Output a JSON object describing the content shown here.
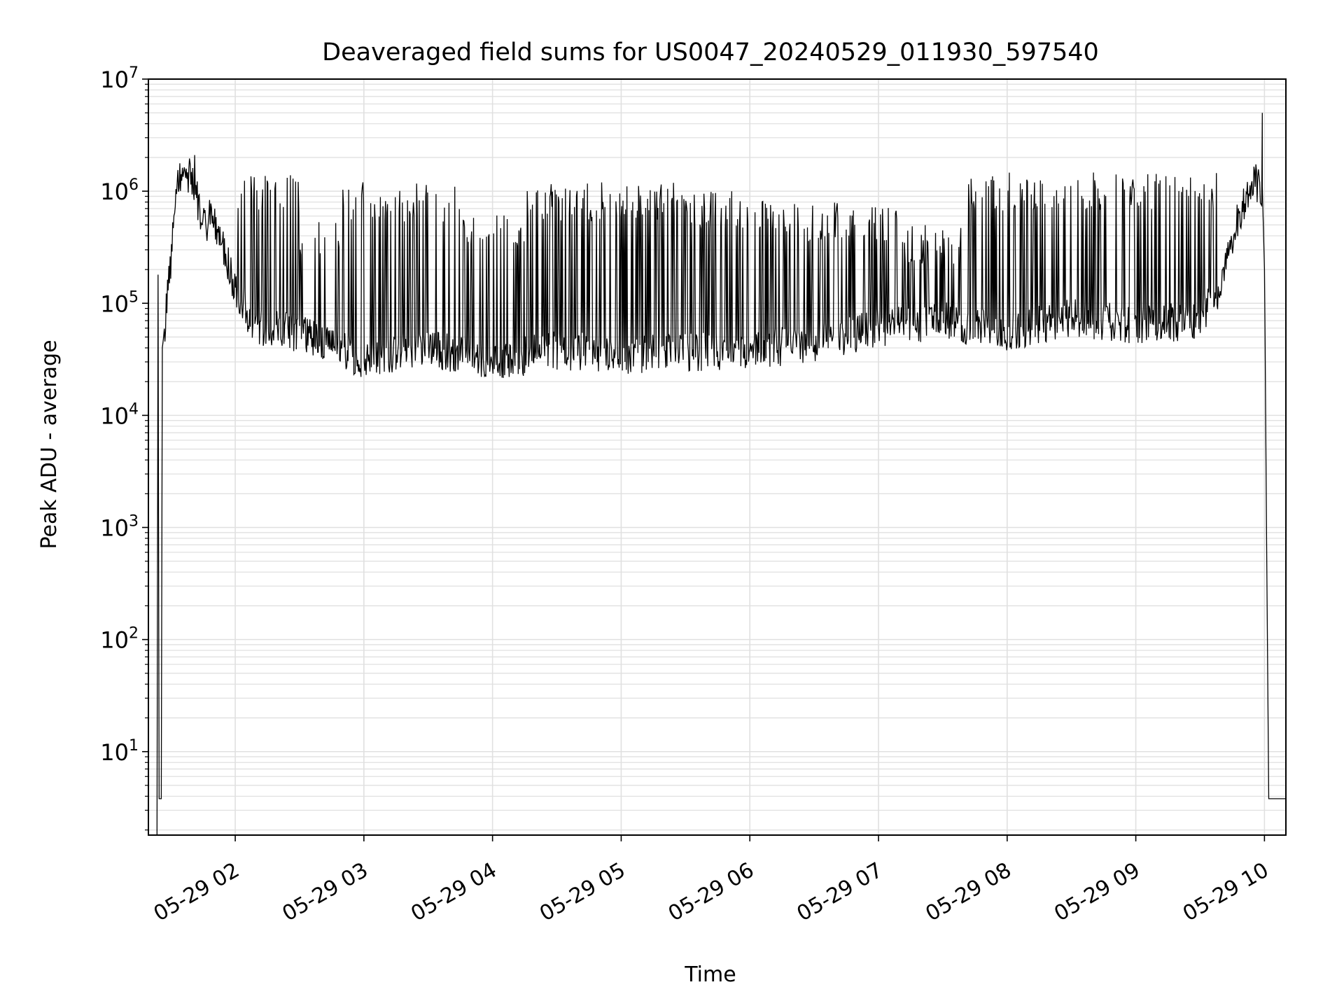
{
  "chart_data": {
    "type": "line",
    "title": "Deaveraged field sums for US0047_20240529_011930_597540",
    "xlabel": "Time",
    "ylabel": "Peak ADU - average",
    "x_scale": "time",
    "y_scale": "log",
    "x_range": [
      "2024-05-29T01:19:30",
      "2024-05-29T10:10:00"
    ],
    "ylim": [
      1.8,
      10000000
    ],
    "x_ticks": [
      {
        "time": "2024-05-29T02:00:00",
        "label": "05-29 02"
      },
      {
        "time": "2024-05-29T03:00:00",
        "label": "05-29 03"
      },
      {
        "time": "2024-05-29T04:00:00",
        "label": "05-29 04"
      },
      {
        "time": "2024-05-29T05:00:00",
        "label": "05-29 05"
      },
      {
        "time": "2024-05-29T06:00:00",
        "label": "05-29 06"
      },
      {
        "time": "2024-05-29T07:00:00",
        "label": "05-29 07"
      },
      {
        "time": "2024-05-29T08:00:00",
        "label": "05-29 08"
      },
      {
        "time": "2024-05-29T09:00:00",
        "label": "05-29 09"
      },
      {
        "time": "2024-05-29T10:00:00",
        "label": "05-29 10"
      }
    ],
    "y_ticks": [
      {
        "value": 10,
        "base": "10",
        "exp": "1"
      },
      {
        "value": 100,
        "base": "10",
        "exp": "2"
      },
      {
        "value": 1000,
        "base": "10",
        "exp": "3"
      },
      {
        "value": 10000,
        "base": "10",
        "exp": "4"
      },
      {
        "value": 100000,
        "base": "10",
        "exp": "5"
      },
      {
        "value": 1000000,
        "base": "10",
        "exp": "6"
      },
      {
        "value": 10000000,
        "base": "10",
        "exp": "7"
      }
    ],
    "grid": true,
    "minor_grid": true,
    "line_color": "#000000",
    "grid_color": "#e0e0e0",
    "baseline": [
      [
        "2024-05-29T01:26:00",
        40000
      ],
      [
        "2024-05-29T01:29:00",
        150000
      ],
      [
        "2024-05-29T01:33:00",
        1000000
      ],
      [
        "2024-05-29T01:36:00",
        1600000
      ],
      [
        "2024-05-29T01:40:00",
        1300000
      ],
      [
        "2024-05-29T01:45:00",
        500000
      ],
      [
        "2024-05-29T01:50:00",
        600000
      ],
      [
        "2024-05-29T01:55:00",
        300000
      ],
      [
        "2024-05-29T02:00:00",
        130000
      ],
      [
        "2024-05-29T02:10:00",
        60000
      ],
      [
        "2024-05-29T02:30:00",
        55000
      ],
      [
        "2024-05-29T02:45:00",
        40000
      ],
      [
        "2024-05-29T03:00:00",
        32000
      ],
      [
        "2024-05-29T03:30:00",
        40000
      ],
      [
        "2024-05-29T04:00:00",
        30000
      ],
      [
        "2024-05-29T04:30:00",
        38000
      ],
      [
        "2024-05-29T05:00:00",
        35000
      ],
      [
        "2024-05-29T05:30:00",
        36000
      ],
      [
        "2024-05-29T06:00:00",
        38000
      ],
      [
        "2024-05-29T06:30:00",
        45000
      ],
      [
        "2024-05-29T07:00:00",
        60000
      ],
      [
        "2024-05-29T07:30:00",
        70000
      ],
      [
        "2024-05-29T08:00:00",
        55000
      ],
      [
        "2024-05-29T08:30:00",
        75000
      ],
      [
        "2024-05-29T09:00:00",
        65000
      ],
      [
        "2024-05-29T09:30:00",
        70000
      ],
      [
        "2024-05-29T09:40:00",
        150000
      ],
      [
        "2024-05-29T09:48:00",
        600000
      ],
      [
        "2024-05-29T09:55:00",
        1200000
      ],
      [
        "2024-05-29T09:59:00",
        1100000
      ]
    ],
    "spike_segments": [
      {
        "from": "2024-05-29T02:00:00",
        "to": "2024-05-29T02:30:00",
        "level": 1400000
      },
      {
        "from": "2024-05-29T02:30:00",
        "to": "2024-05-29T02:50:00",
        "level": 600000
      },
      {
        "from": "2024-05-29T02:50:00",
        "to": "2024-05-29T03:45:00",
        "level": 1200000
      },
      {
        "from": "2024-05-29T03:45:00",
        "to": "2024-05-29T04:15:00",
        "level": 700000
      },
      {
        "from": "2024-05-29T04:15:00",
        "to": "2024-05-29T05:30:00",
        "level": 1200000
      },
      {
        "from": "2024-05-29T05:30:00",
        "to": "2024-05-29T06:15:00",
        "level": 1000000
      },
      {
        "from": "2024-05-29T06:15:00",
        "to": "2024-05-29T07:10:00",
        "level": 800000
      },
      {
        "from": "2024-05-29T07:10:00",
        "to": "2024-05-29T07:40:00",
        "level": 500000
      },
      {
        "from": "2024-05-29T07:40:00",
        "to": "2024-05-29T09:40:00",
        "level": 1500000
      }
    ],
    "notable_points": [
      [
        "2024-05-29T01:24:00",
        180000
      ],
      [
        "2024-05-29T01:41:00",
        2100000
      ],
      [
        "2024-05-29T09:59:00",
        5000000
      ]
    ],
    "start_drop": [
      [
        "2024-05-29T01:23:30",
        1.8
      ],
      [
        "2024-05-29T01:24:00",
        180000
      ],
      [
        "2024-05-29T01:24:30",
        3.8
      ],
      [
        "2024-05-29T01:25:30",
        3.8
      ],
      [
        "2024-05-29T01:26:00",
        40000
      ]
    ],
    "end_drop": [
      [
        "2024-05-29T09:59:00",
        1100000
      ],
      [
        "2024-05-29T10:00:00",
        200000
      ],
      [
        "2024-05-29T10:00:20",
        40000
      ],
      [
        "2024-05-29T10:01:00",
        800
      ],
      [
        "2024-05-29T10:01:30",
        50
      ],
      [
        "2024-05-29T10:02:00",
        3.8
      ],
      [
        "2024-05-29T10:10:00",
        3.8
      ]
    ]
  }
}
